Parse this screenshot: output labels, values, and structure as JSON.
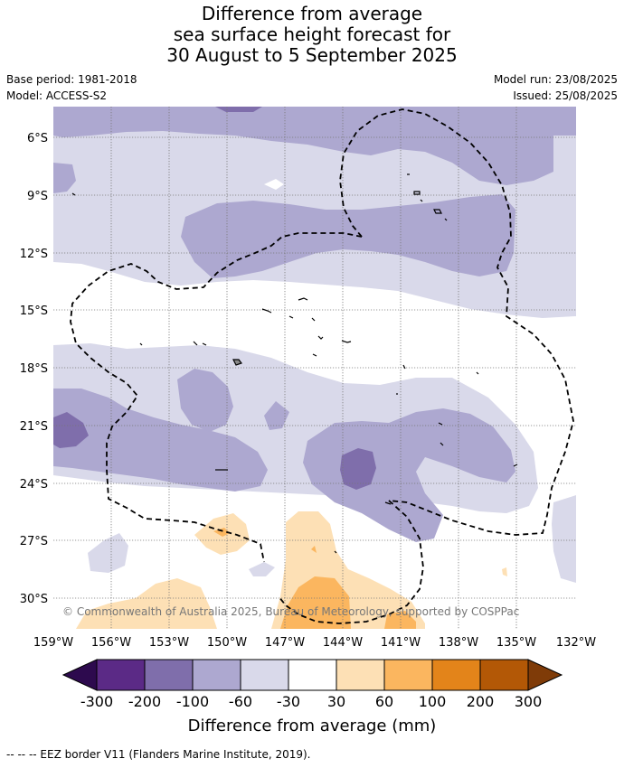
{
  "title": {
    "line1": "Difference from average",
    "line2": "sea surface height forecast for",
    "line3": "30 August to 5 September 2025"
  },
  "meta": {
    "base_period": "Base period: 1981-2018",
    "model": "Model: ACCESS-S2",
    "model_run": "Model run: 23/08/2025",
    "issued": "Issued: 25/08/2025"
  },
  "map": {
    "lat_labels": [
      "6°S",
      "9°S",
      "12°S",
      "15°S",
      "18°S",
      "21°S",
      "24°S",
      "27°S",
      "30°S"
    ],
    "lon_labels": [
      "159°W",
      "156°W",
      "153°W",
      "150°W",
      "147°W",
      "144°W",
      "141°W",
      "138°W",
      "135°W",
      "132°W"
    ],
    "copyright": "© Commonwealth of Australia 2025, Bureau of Meteorology, supported by COSPPac"
  },
  "colorbar": {
    "labels": [
      "-300",
      "-200",
      "-100",
      "-60",
      "-30",
      "30",
      "60",
      "100",
      "200",
      "300"
    ],
    "colors": [
      "#2d0a4e",
      "#5b2a86",
      "#7f6eab",
      "#ada8d0",
      "#d9d9ea",
      "#ffffff",
      "#fde0b5",
      "#fbb65f",
      "#e3841a",
      "#b35806",
      "#7f3b08"
    ],
    "title": "Difference from average (mm)"
  },
  "footer": "--  --  -- EEZ border V11 (Flanders Marine Institute, 2019)."
}
